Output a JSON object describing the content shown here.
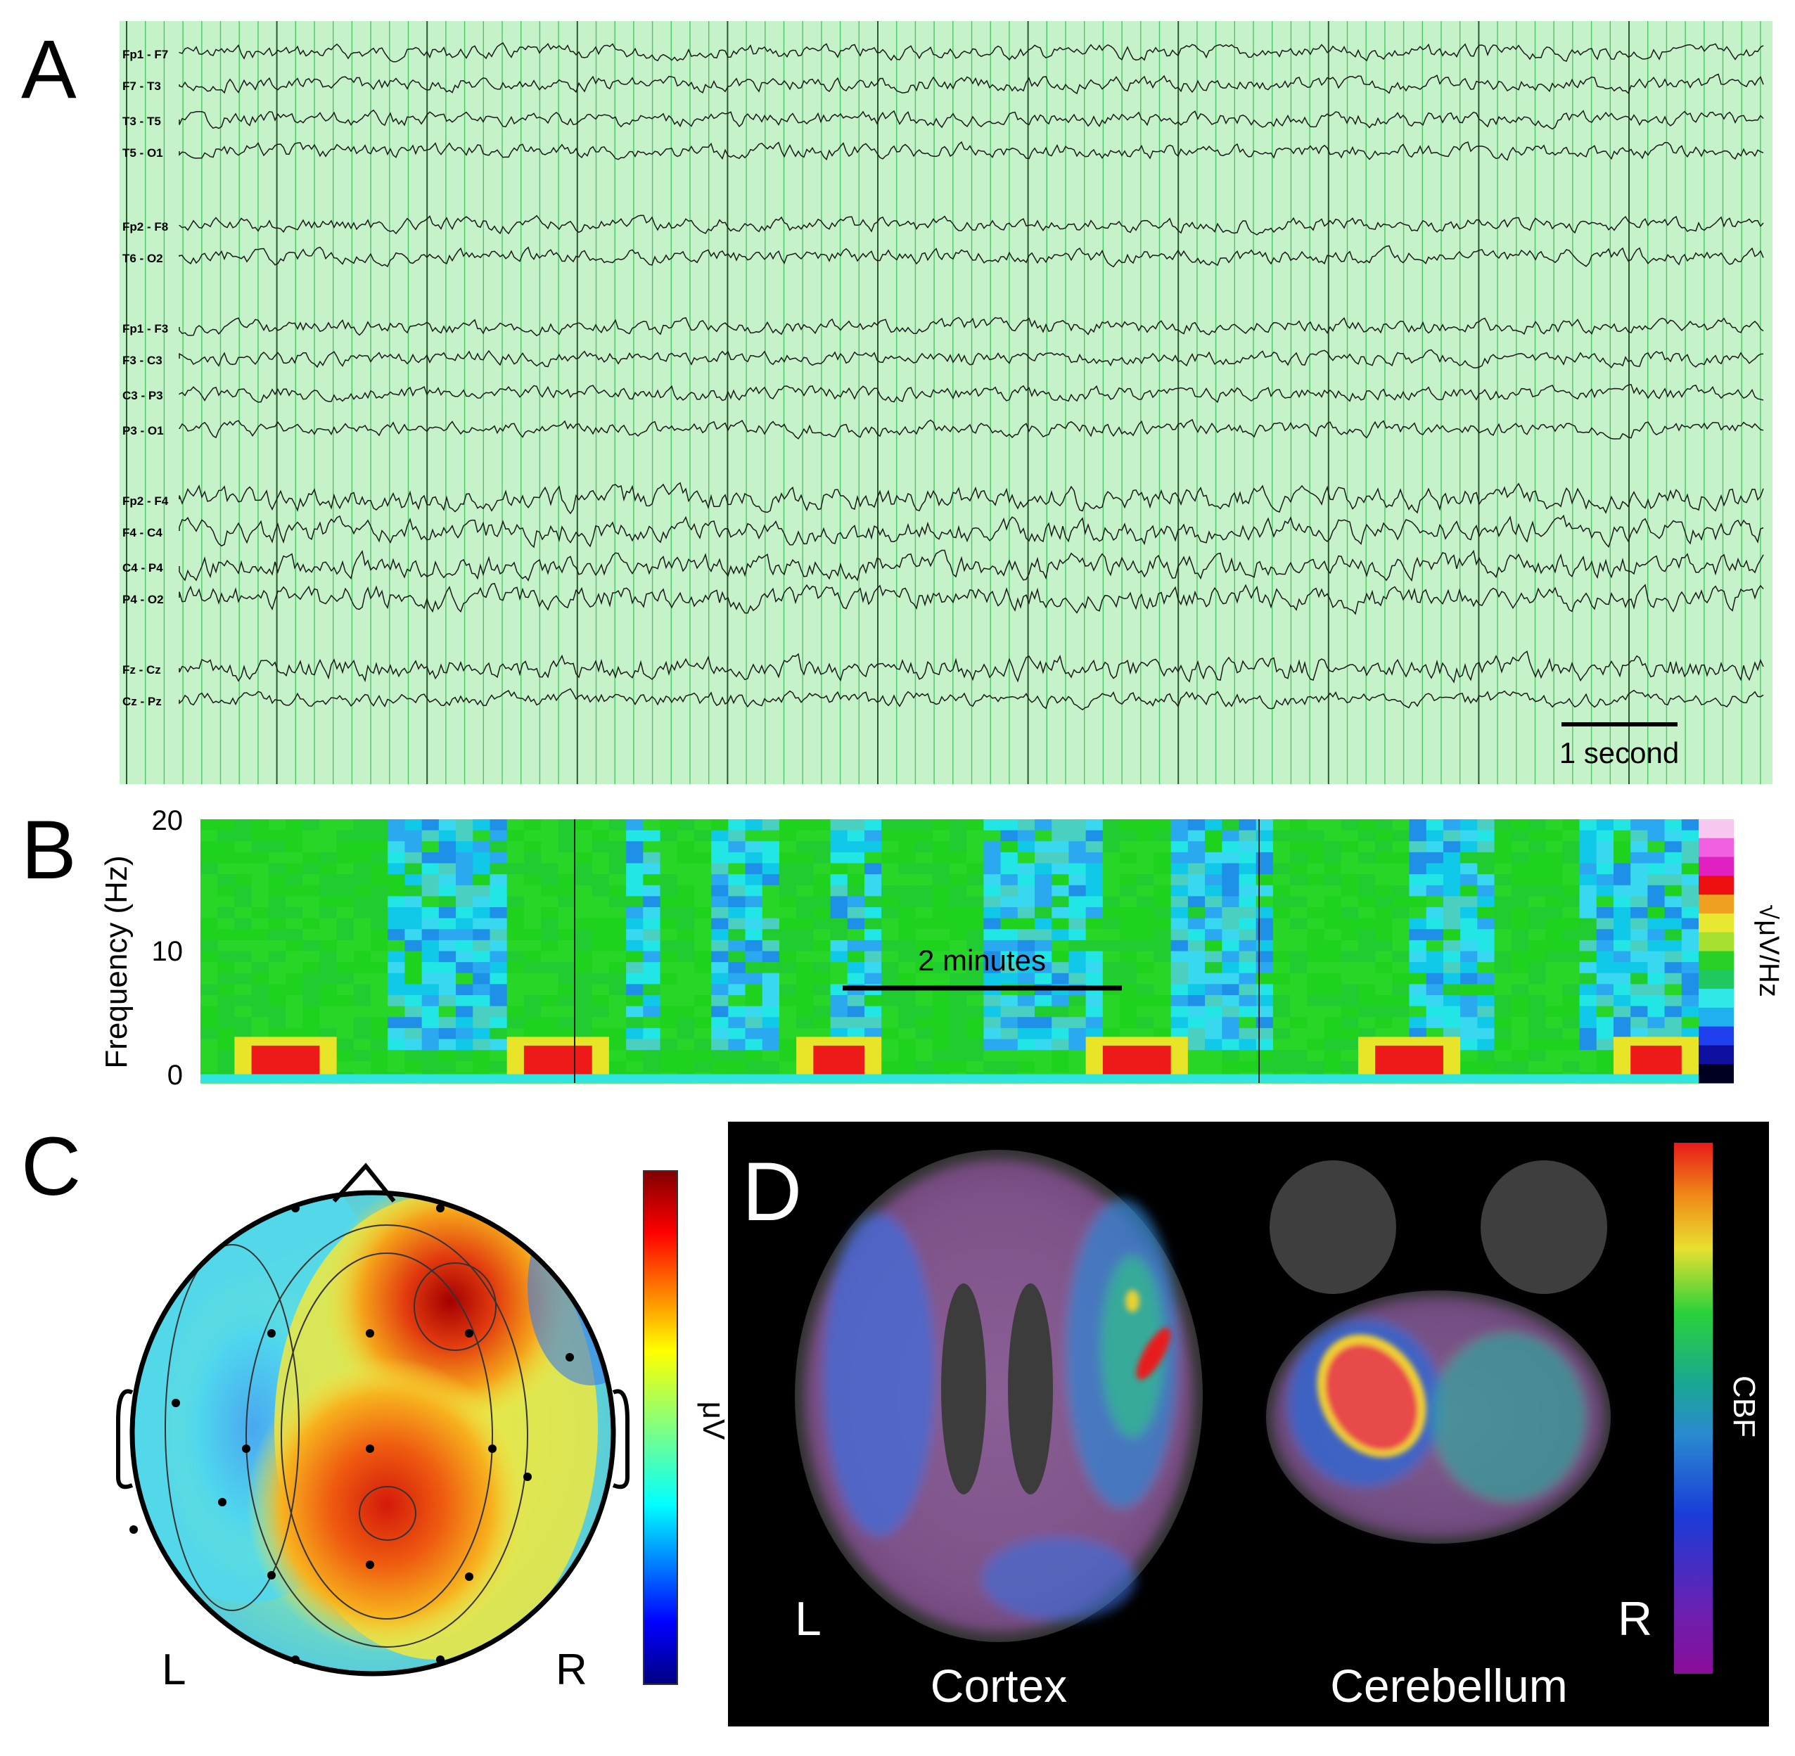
{
  "figure": {
    "panels": {
      "A": {
        "letter": "A",
        "channels": [
          "Fp1 - F7",
          "F7 - T3",
          "T3 - T5",
          "T5 - O1",
          "Fp2 - F8",
          "T6 - O2",
          "Fp1 - F3",
          "F3 - C3",
          "C3 - P3",
          "P3 - O1",
          "Fp2 - F4",
          "F4 - C4",
          "C4 - P4",
          "P4 - O2",
          "Fz - Cz",
          "Cz - Pz"
        ],
        "scale_bar_label": "1 second",
        "background_color": "#c5f2c9"
      },
      "B": {
        "letter": "B",
        "ylabel": "Frequency (Hz)",
        "yticks": [
          "0",
          "10",
          "20"
        ],
        "scale_bar_label": "2 minutes",
        "colorbar_label": "√μV/Hz"
      },
      "C": {
        "letter": "C",
        "left_label": "L",
        "right_label": "R",
        "colorbar_label": "μV"
      },
      "D": {
        "letter": "D",
        "left_label": "L",
        "right_label": "R",
        "captions": [
          "Cortex",
          "Cerebellum"
        ],
        "colorbar_label": "CBF"
      }
    }
  },
  "chart_data": {
    "type": "heatmap",
    "title": "",
    "xlabel": "",
    "ylabel": "Frequency (Hz)",
    "ylim": [
      0,
      20
    ],
    "high_power_bursts_hz": [
      {
        "burst": 1,
        "freq_range": [
          0,
          3
        ]
      },
      {
        "burst": 2,
        "freq_range": [
          0,
          3
        ]
      },
      {
        "burst": 3,
        "freq_range": [
          0,
          3
        ]
      },
      {
        "burst": 4,
        "freq_range": [
          0,
          3
        ]
      },
      {
        "burst": 5,
        "freq_range": [
          0,
          3
        ]
      },
      {
        "burst": 6,
        "freq_range": [
          0,
          2
        ]
      }
    ]
  }
}
